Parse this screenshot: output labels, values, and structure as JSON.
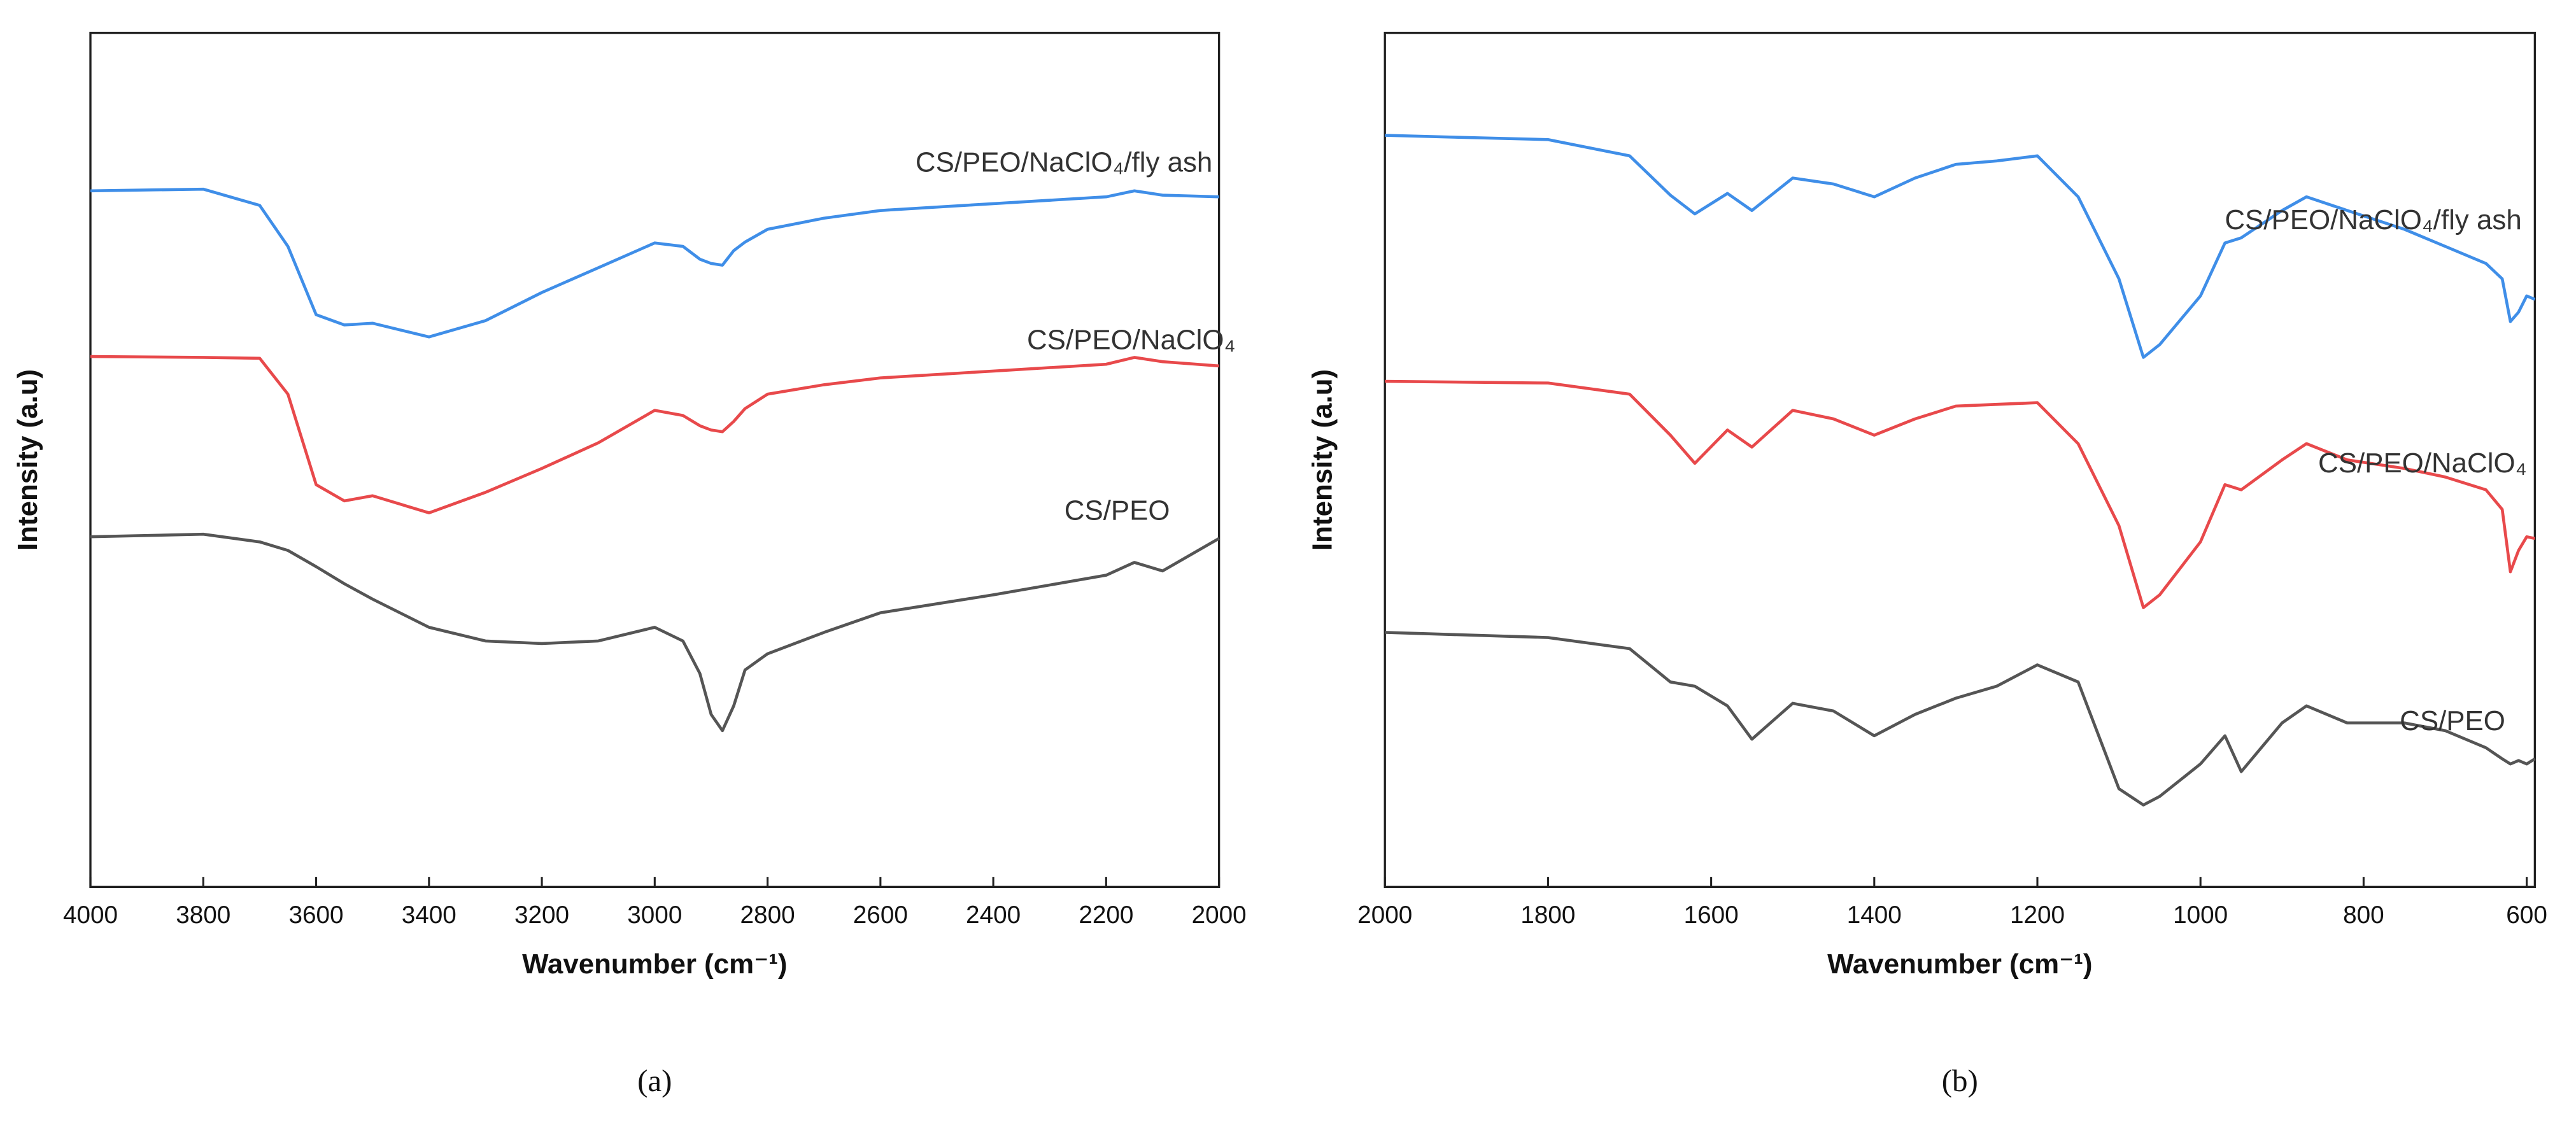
{
  "chart_data": [
    {
      "type": "line",
      "caption": "(a)",
      "xlabel": "Wavenumber (cm⁻¹)",
      "ylabel": "Intensity (a.u)",
      "xlim": [
        4000,
        2000
      ],
      "xticks": [
        4000,
        3800,
        3600,
        3400,
        3200,
        3000,
        2800,
        2600,
        2400,
        2200,
        2000
      ],
      "ylim": [
        0,
        100
      ],
      "x": [
        4000,
        3800,
        3700,
        3650,
        3600,
        3550,
        3500,
        3400,
        3300,
        3200,
        3100,
        3000,
        2950,
        2920,
        2900,
        2880,
        2860,
        2840,
        2800,
        2700,
        2600,
        2400,
        2200,
        2150,
        2100,
        2000
      ],
      "series": [
        {
          "name": "CS/PEO/NaClO₄/fly ash",
          "color": "#3f8ee8",
          "values": [
            81.5,
            81.7,
            79.8,
            75,
            67,
            65.8,
            66,
            64.4,
            66.3,
            69.6,
            72.5,
            75.4,
            75,
            73.5,
            73,
            72.8,
            74.5,
            75.5,
            77,
            78.3,
            79.2,
            80,
            80.8,
            81.5,
            81,
            80.8
          ]
        },
        {
          "name": "CS/PEO/NaClO₄",
          "color": "#e8494b",
          "values": [
            62.1,
            62,
            61.9,
            57.7,
            47.1,
            45.2,
            45.8,
            43.8,
            46.2,
            49,
            52,
            55.8,
            55.2,
            54,
            53.5,
            53.3,
            54.5,
            56,
            57.7,
            58.8,
            59.6,
            60.4,
            61.2,
            62,
            61.5,
            61
          ]
        },
        {
          "name": "CS/PEO",
          "color": "#555555",
          "values": [
            41,
            41.3,
            40.4,
            39.4,
            37.5,
            35.5,
            33.7,
            30.4,
            28.8,
            28.5,
            28.8,
            30.4,
            28.8,
            25,
            20.2,
            18.3,
            21.2,
            25.4,
            27.3,
            29.8,
            32.1,
            34.2,
            36.5,
            38,
            37,
            40.8
          ]
        }
      ]
    },
    {
      "type": "line",
      "caption": "(b)",
      "xlabel": "Wavenumber (cm⁻¹)",
      "ylabel": "Intensity (a.u)",
      "xlim": [
        2000,
        590
      ],
      "xticks": [
        2000,
        1800,
        1600,
        1400,
        1200,
        1000,
        800,
        600
      ],
      "ylim": [
        0,
        100
      ],
      "x": [
        2000,
        1800,
        1700,
        1650,
        1620,
        1580,
        1550,
        1500,
        1450,
        1400,
        1350,
        1300,
        1250,
        1200,
        1150,
        1100,
        1070,
        1050,
        1000,
        970,
        950,
        900,
        870,
        820,
        750,
        700,
        650,
        630,
        620,
        610,
        600,
        590
      ],
      "series": [
        {
          "name": "CS/PEO/NaClO₄/fly ash",
          "color": "#3f8ee8",
          "values": [
            88,
            87.5,
            85.6,
            81,
            78.8,
            81.2,
            79.2,
            83,
            82.3,
            80.8,
            83,
            84.6,
            85,
            85.6,
            80.8,
            71.2,
            62,
            63.5,
            69.2,
            75.4,
            76,
            79.2,
            80.8,
            79.2,
            77,
            75,
            73,
            71.2,
            66.2,
            67.3,
            69.2,
            68.8
          ]
        },
        {
          "name": "CS/PEO/NaClO₄",
          "color": "#e8494b",
          "values": [
            59.2,
            59,
            57.7,
            52.9,
            49.6,
            53.5,
            51.5,
            55.8,
            54.8,
            52.9,
            54.8,
            56.3,
            56.5,
            56.7,
            51.9,
            42.3,
            32.7,
            34.2,
            40.4,
            47.1,
            46.5,
            50,
            51.9,
            50,
            49,
            48,
            46.5,
            44.2,
            36.9,
            39.4,
            41,
            40.8
          ]
        },
        {
          "name": "CS/PEO",
          "color": "#555555",
          "values": [
            29.8,
            29.2,
            27.9,
            24,
            23.5,
            21.2,
            17.3,
            21.5,
            20.6,
            17.7,
            20.2,
            22.1,
            23.5,
            26,
            24,
            11.5,
            9.6,
            10.6,
            14.4,
            17.7,
            13.5,
            19.2,
            21.2,
            19.2,
            19.2,
            18.3,
            16.3,
            15,
            14.4,
            14.8,
            14.4,
            15
          ]
        }
      ]
    }
  ]
}
